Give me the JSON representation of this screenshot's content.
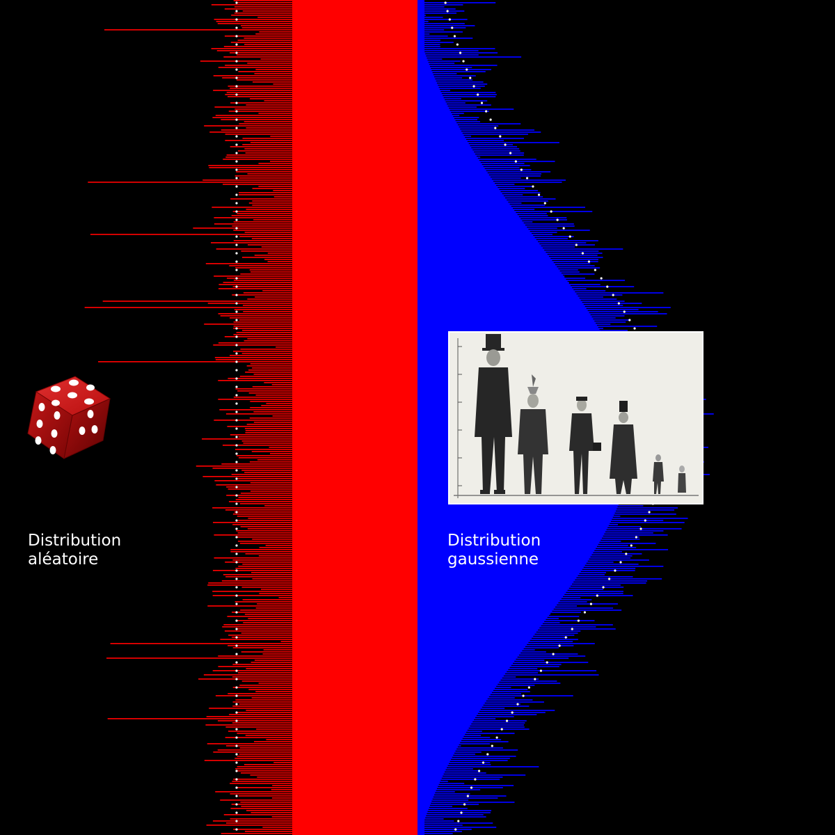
{
  "labels": {
    "uniform": {
      "line1": "Distribution",
      "line2": "aléatoire"
    },
    "gaussian": {
      "line1": "Distribution",
      "line2": "gaussienne"
    }
  },
  "colors": {
    "background": "#000000",
    "uniform": "#ff0000",
    "gaussian": "#0000ff",
    "reference_curve": "#ffffff"
  },
  "icons": {
    "dice": "red-die-icon",
    "photo": "engraving-height-comparison"
  },
  "chart_data": [
    {
      "type": "bar",
      "orientation": "horizontal",
      "direction": "left",
      "name": "uniform",
      "title": "",
      "n_bars": 400,
      "mean_value": 260,
      "value_min": 190,
      "value_max": 480,
      "reference_line": {
        "shape": "vertical",
        "value": 260
      },
      "grid": false
    },
    {
      "type": "bar",
      "orientation": "horizontal",
      "direction": "right",
      "name": "gaussian",
      "title": "",
      "n_bars": 400,
      "peak_value": 350,
      "peak_position": 0.52,
      "reference_line": {
        "shape": "gaussian-curve",
        "peak_value": 350
      },
      "grid": false
    }
  ]
}
